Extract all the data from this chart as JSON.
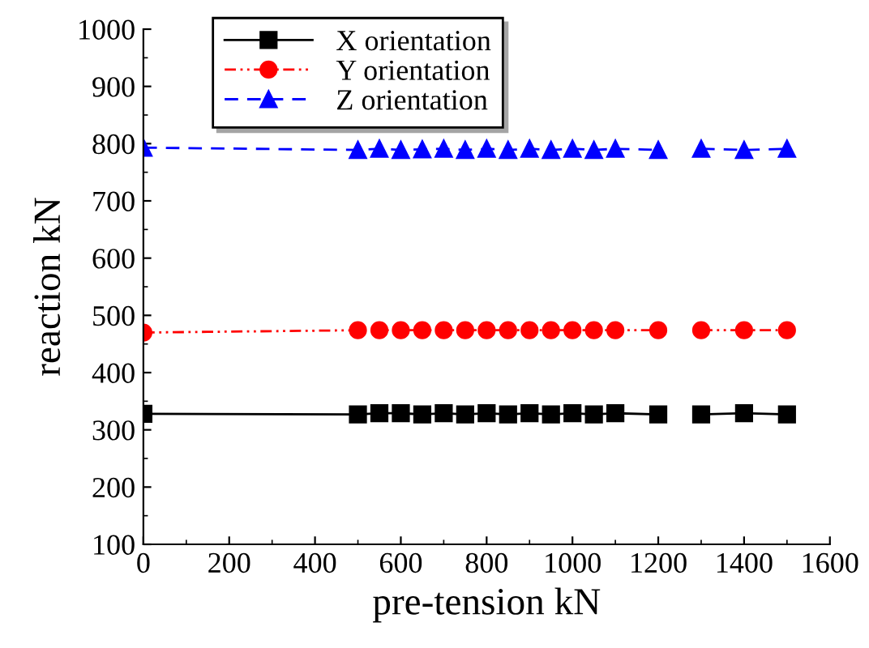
{
  "chart_data": {
    "type": "line",
    "xlabel": "pre-tension kN",
    "ylabel": "reaction kN",
    "x": [
      0,
      500,
      550,
      600,
      650,
      700,
      750,
      800,
      850,
      900,
      950,
      1000,
      1050,
      1100,
      1200,
      1250,
      1300,
      1400,
      1500
    ],
    "series": [
      {
        "name": "X orientation",
        "color": "#000000",
        "marker": "square",
        "line_style": "solid",
        "values": [
          328,
          327,
          329,
          329,
          327,
          329,
          327,
          329,
          327,
          329,
          327,
          329,
          327,
          329,
          327,
          null,
          327,
          329,
          327
        ]
      },
      {
        "name": "Y orientation",
        "color": "#ff0000",
        "marker": "circle",
        "line_style": "dashdotdot",
        "values": [
          470,
          474,
          474,
          474,
          474,
          474,
          474,
          474,
          474,
          474,
          474,
          474,
          474,
          474,
          474,
          null,
          474,
          474,
          474
        ]
      },
      {
        "name": "Z orientation",
        "color": "#0000ff",
        "marker": "triangle",
        "line_style": "dashed",
        "values": [
          793,
          789,
          791,
          789,
          790,
          791,
          789,
          791,
          789,
          791,
          789,
          791,
          789,
          791,
          789,
          null,
          791,
          789,
          791
        ]
      }
    ],
    "xlim": [
      0,
      1600
    ],
    "xticks": [
      0,
      200,
      400,
      600,
      800,
      1000,
      1200,
      1400,
      1600
    ],
    "ylim": [
      100,
      1000
    ],
    "yticks": [
      100,
      200,
      300,
      400,
      500,
      600,
      700,
      800,
      900,
      1000
    ],
    "grid": false,
    "legend": "top left"
  }
}
